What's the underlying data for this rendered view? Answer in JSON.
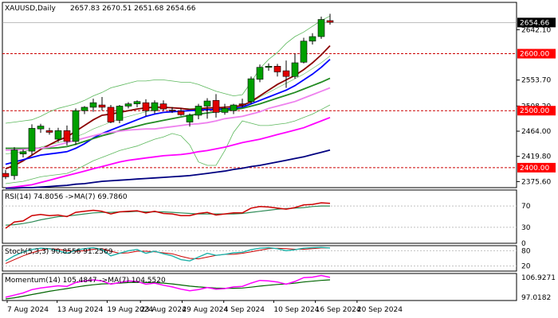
{
  "header": {
    "symbol": "XAUUSD,Daily",
    "ohlc": "2657.83 2670.51 2651.68 2654.66"
  },
  "colors": {
    "bull": "#00a000",
    "bear": "#e00000",
    "sma_fast": "#8b0000",
    "sma_20": "#0000ff",
    "sma_55": "#228b22",
    "sma_100": "#ee82ee",
    "sma_200": "#ff00ff",
    "sma_slow": "#000080",
    "bollinger": "#5cb85c",
    "level_line": "#cc0000",
    "current_price_bg": "#000000",
    "level_bg": "#ff0000",
    "rsi": "#cc0000",
    "rsi_ma": "#2e8b57",
    "stoch_main": "#20b2aa",
    "stoch_signal": "#cc0000",
    "momentum": "#ff00ff",
    "momentum_ma": "#006400",
    "grid": "#c0c0c0"
  },
  "main_axis": {
    "ticks": [
      "2642.10",
      "2553.70",
      "2508.20",
      "2464.00",
      "2419.80",
      "2375.60"
    ],
    "current_price": "2654.66",
    "levels": [
      "2600.00",
      "2500.00",
      "2400.00"
    ]
  },
  "rsi": {
    "label": "RSI(14) 74.8056 ->MA(7) 69.7860",
    "ticks": [
      "70",
      "30",
      "0"
    ]
  },
  "stoch": {
    "label": "Stoch(5,3,3) 90.8556 91.2569",
    "ticks": [
      "80",
      "20"
    ]
  },
  "momentum": {
    "label": "Momentum(14) 105.4847 ->MA(7) 104.5520",
    "ticks": [
      "106.9271",
      "97.0182"
    ]
  },
  "chart_data": {
    "type": "candlestick",
    "symbol": "XAUUSD",
    "timeframe": "Daily",
    "x_tick_labels": [
      "7 Aug 2024",
      "13 Aug 2024",
      "19 Aug 2024",
      "23 Aug 2024",
      "29 Aug 2024",
      "4 Sep 2024",
      "10 Sep 2024",
      "16 Sep 2024",
      "20 Sep 2024"
    ],
    "y_range": [
      2365,
      2690
    ],
    "candles": [
      {
        "o": 2390,
        "h": 2396,
        "l": 2380,
        "c": 2384
      },
      {
        "o": 2386,
        "h": 2436,
        "l": 2379,
        "c": 2431
      },
      {
        "o": 2424,
        "h": 2432,
        "l": 2418,
        "c": 2428
      },
      {
        "o": 2429,
        "h": 2476,
        "l": 2421,
        "c": 2469
      },
      {
        "o": 2468,
        "h": 2477,
        "l": 2461,
        "c": 2473
      },
      {
        "o": 2465,
        "h": 2470,
        "l": 2458,
        "c": 2462
      },
      {
        "o": 2450,
        "h": 2470,
        "l": 2445,
        "c": 2465
      },
      {
        "o": 2465,
        "h": 2474,
        "l": 2439,
        "c": 2446
      },
      {
        "o": 2446,
        "h": 2504,
        "l": 2440,
        "c": 2500
      },
      {
        "o": 2500,
        "h": 2508,
        "l": 2494,
        "c": 2506
      },
      {
        "o": 2506,
        "h": 2521,
        "l": 2498,
        "c": 2514
      },
      {
        "o": 2510,
        "h": 2524,
        "l": 2500,
        "c": 2506
      },
      {
        "o": 2506,
        "h": 2510,
        "l": 2478,
        "c": 2480
      },
      {
        "o": 2483,
        "h": 2510,
        "l": 2478,
        "c": 2508
      },
      {
        "o": 2508,
        "h": 2515,
        "l": 2504,
        "c": 2512
      },
      {
        "o": 2512,
        "h": 2518,
        "l": 2506,
        "c": 2516
      },
      {
        "o": 2514,
        "h": 2520,
        "l": 2490,
        "c": 2500
      },
      {
        "o": 2500,
        "h": 2518,
        "l": 2495,
        "c": 2514
      },
      {
        "o": 2512,
        "h": 2518,
        "l": 2500,
        "c": 2503
      },
      {
        "o": 2501,
        "h": 2506,
        "l": 2496,
        "c": 2500
      },
      {
        "o": 2499,
        "h": 2504,
        "l": 2491,
        "c": 2493
      },
      {
        "o": 2480,
        "h": 2495,
        "l": 2472,
        "c": 2492
      },
      {
        "o": 2492,
        "h": 2512,
        "l": 2485,
        "c": 2508
      },
      {
        "o": 2508,
        "h": 2522,
        "l": 2486,
        "c": 2517
      },
      {
        "o": 2518,
        "h": 2529,
        "l": 2488,
        "c": 2497
      },
      {
        "o": 2497,
        "h": 2512,
        "l": 2493,
        "c": 2504
      },
      {
        "o": 2500,
        "h": 2512,
        "l": 2494,
        "c": 2510
      },
      {
        "o": 2512,
        "h": 2521,
        "l": 2506,
        "c": 2510
      },
      {
        "o": 2516,
        "h": 2560,
        "l": 2512,
        "c": 2556
      },
      {
        "o": 2555,
        "h": 2581,
        "l": 2550,
        "c": 2576
      },
      {
        "o": 2576,
        "h": 2583,
        "l": 2570,
        "c": 2578
      },
      {
        "o": 2578,
        "h": 2582,
        "l": 2560,
        "c": 2568
      },
      {
        "o": 2570,
        "h": 2588,
        "l": 2540,
        "c": 2560
      },
      {
        "o": 2560,
        "h": 2600,
        "l": 2556,
        "c": 2584
      },
      {
        "o": 2585,
        "h": 2628,
        "l": 2583,
        "c": 2622
      },
      {
        "o": 2622,
        "h": 2636,
        "l": 2616,
        "c": 2630
      },
      {
        "o": 2630,
        "h": 2665,
        "l": 2626,
        "c": 2660
      },
      {
        "o": 2658,
        "h": 2670,
        "l": 2651,
        "c": 2655
      }
    ],
    "moving_averages": [
      {
        "key": "sma_fast",
        "values": [
          2398,
          2404,
          2412,
          2422,
          2432,
          2440,
          2448,
          2454,
          2464,
          2474,
          2484,
          2492,
          2494,
          2497,
          2500,
          2503,
          2505,
          2506,
          2506,
          2505,
          2504,
          2502,
          2503,
          2505,
          2505,
          2506,
          2507,
          2509,
          2516,
          2526,
          2536,
          2546,
          2554,
          2562,
          2572,
          2584,
          2598,
          2614
        ]
      },
      {
        "key": "sma_20",
        "values": [
          2406,
          2410,
          2414,
          2418,
          2422,
          2424,
          2426,
          2428,
          2434,
          2442,
          2452,
          2460,
          2466,
          2472,
          2478,
          2484,
          2490,
          2494,
          2497,
          2498,
          2499,
          2500,
          2501,
          2502,
          2502,
          2503,
          2504,
          2506,
          2512,
          2518,
          2524,
          2530,
          2536,
          2544,
          2554,
          2564,
          2576,
          2590
        ]
      },
      {
        "key": "sma_55",
        "values": [
          2434,
          2434,
          2434,
          2434,
          2434,
          2434,
          2435,
          2437,
          2441,
          2446,
          2451,
          2456,
          2460,
          2465,
          2469,
          2473,
          2477,
          2480,
          2483,
          2486,
          2489,
          2492,
          2494,
          2496,
          2498,
          2500,
          2502,
          2504,
          2508,
          2512,
          2517,
          2522,
          2527,
          2532,
          2538,
          2544,
          2550,
          2557
        ]
      },
      {
        "key": "sma_100",
        "values": [
          2431,
          2431,
          2432,
          2433,
          2434,
          2436,
          2440,
          2444,
          2448,
          2452,
          2456,
          2460,
          2462,
          2464,
          2466,
          2467,
          2468,
          2468,
          2470,
          2472,
          2474,
          2476,
          2477,
          2479,
          2482,
          2486,
          2488,
          2490,
          2494,
          2498,
          2504,
          2508,
          2512,
          2516,
          2522,
          2528,
          2534,
          2540
        ]
      },
      {
        "key": "sma_200",
        "values": [
          2364,
          2366,
          2368,
          2370,
          2374,
          2378,
          2382,
          2386,
          2390,
          2394,
          2398,
          2402,
          2406,
          2410,
          2413,
          2415,
          2417,
          2419,
          2421,
          2422,
          2423,
          2425,
          2428,
          2430,
          2433,
          2436,
          2440,
          2444,
          2447,
          2450,
          2454,
          2458,
          2462,
          2466,
          2470,
          2476,
          2482,
          2488
        ]
      },
      {
        "key": "sma_slow",
        "values": [
          2364,
          2364,
          2365,
          2365,
          2366,
          2367,
          2368,
          2369,
          2371,
          2372,
          2374,
          2376,
          2377,
          2378,
          2379,
          2380,
          2381,
          2382,
          2383,
          2384,
          2385,
          2386,
          2388,
          2390,
          2392,
          2394,
          2397,
          2399,
          2402,
          2404,
          2407,
          2410,
          2413,
          2416,
          2419,
          2423,
          2427,
          2431
        ]
      }
    ],
    "bollinger": {
      "upper": [
        2478,
        2480,
        2482,
        2484,
        2490,
        2498,
        2504,
        2508,
        2512,
        2518,
        2526,
        2532,
        2540,
        2544,
        2548,
        2552,
        2552,
        2554,
        2554,
        2552,
        2550,
        2550,
        2546,
        2540,
        2534,
        2530,
        2526,
        2528,
        2550,
        2574,
        2590,
        2602,
        2618,
        2630,
        2638,
        2648,
        2658,
        2666
      ],
      "middle": [
        2424,
        2426,
        2428,
        2432,
        2436,
        2440,
        2444,
        2448,
        2454,
        2460,
        2468,
        2474,
        2480,
        2486,
        2490,
        2494,
        2498,
        2502,
        2504,
        2506,
        2504,
        2504,
        2504,
        2504,
        2504,
        2504,
        2504,
        2506,
        2514,
        2524,
        2532,
        2540,
        2548,
        2556,
        2564,
        2574,
        2584,
        2596
      ],
      "lower": [
        2372,
        2374,
        2376,
        2380,
        2384,
        2386,
        2388,
        2390,
        2396,
        2404,
        2412,
        2418,
        2424,
        2430,
        2434,
        2438,
        2444,
        2450,
        2454,
        2460,
        2456,
        2440,
        2410,
        2404,
        2404,
        2430,
        2462,
        2482,
        2478,
        2474,
        2474,
        2476,
        2478,
        2482,
        2488,
        2494,
        2502,
        2510
      ]
    },
    "rsi": {
      "range": [
        0,
        100
      ],
      "value": [
        28,
        40,
        42,
        52,
        54,
        52,
        53,
        50,
        58,
        60,
        62,
        60,
        55,
        59,
        60,
        61,
        57,
        60,
        56,
        55,
        52,
        52,
        56,
        58,
        53,
        55,
        57,
        57,
        66,
        69,
        68,
        66,
        64,
        67,
        72,
        73,
        76,
        75
      ],
      "ma": [
        34,
        35,
        37,
        40,
        44,
        47,
        50,
        51,
        53,
        55,
        57,
        58,
        58,
        59,
        59,
        60,
        59,
        59,
        59,
        58,
        57,
        56,
        55,
        55,
        55,
        55,
        55,
        56,
        58,
        60,
        62,
        64,
        65,
        66,
        67,
        69,
        70,
        70
      ]
    },
    "stoch": {
      "range": [
        0,
        100
      ],
      "main": [
        40,
        60,
        75,
        85,
        90,
        88,
        80,
        70,
        82,
        88,
        92,
        85,
        60,
        70,
        80,
        85,
        70,
        78,
        68,
        60,
        45,
        40,
        55,
        70,
        62,
        66,
        72,
        74,
        84,
        90,
        92,
        88,
        80,
        84,
        90,
        92,
        93,
        91
      ],
      "signal": [
        30,
        45,
        60,
        72,
        82,
        88,
        86,
        80,
        78,
        80,
        86,
        88,
        78,
        70,
        72,
        78,
        78,
        76,
        72,
        68,
        58,
        50,
        48,
        55,
        62,
        66,
        66,
        70,
        76,
        82,
        88,
        90,
        88,
        86,
        86,
        88,
        91,
        91
      ]
    },
    "momentum": {
      "range": [
        97.0182,
        106.9271
      ],
      "value": [
        98.2,
        99.0,
        99.8,
        101.0,
        101.6,
        102.0,
        102.4,
        102.2,
        103.6,
        104.2,
        104.6,
        104.2,
        103.0,
        103.6,
        104.2,
        104.0,
        103.0,
        103.4,
        102.6,
        102.0,
        101.2,
        100.6,
        101.0,
        101.8,
        101.2,
        101.4,
        102.0,
        102.2,
        103.4,
        104.4,
        104.2,
        103.8,
        103.0,
        104.0,
        105.4,
        105.6,
        106.2,
        105.5
      ],
      "ma": [
        97.6,
        98.0,
        98.6,
        99.2,
        99.8,
        100.4,
        100.9,
        101.4,
        101.9,
        102.4,
        102.8,
        103.1,
        103.2,
        103.4,
        103.6,
        103.7,
        103.6,
        103.6,
        103.4,
        103.1,
        102.7,
        102.3,
        102.0,
        101.8,
        101.6,
        101.5,
        101.5,
        101.6,
        101.9,
        102.3,
        102.6,
        102.9,
        103.1,
        103.4,
        103.8,
        104.1,
        104.4,
        104.6
      ]
    }
  }
}
